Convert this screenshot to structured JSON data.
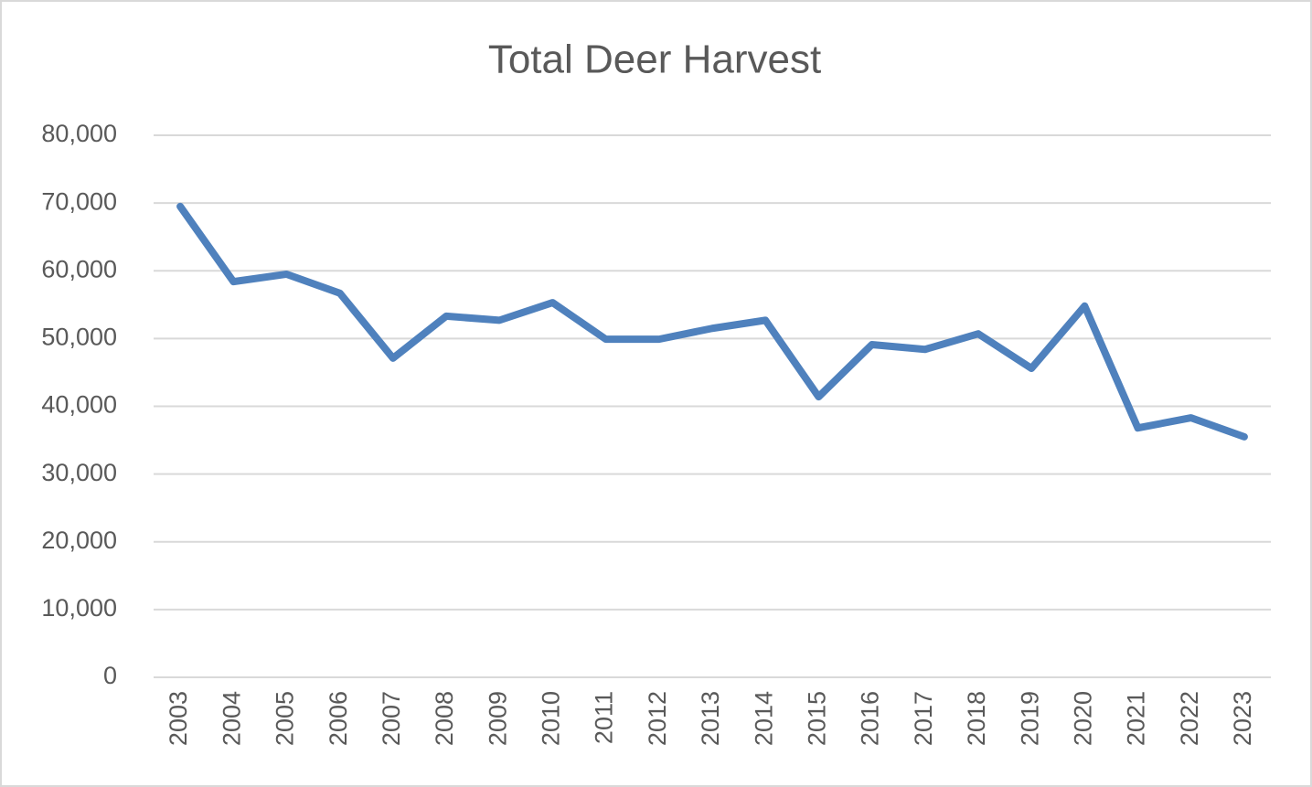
{
  "chart_data": {
    "type": "line",
    "title": "Total Deer Harvest",
    "categories": [
      "2003",
      "2004",
      "2005",
      "2006",
      "2007",
      "2008",
      "2009",
      "2010",
      "2011",
      "2012",
      "2013",
      "2014",
      "2015",
      "2016",
      "2017",
      "2018",
      "2019",
      "2020",
      "2021",
      "2022",
      "2023"
    ],
    "values": [
      69500,
      58400,
      59500,
      56700,
      47100,
      53300,
      52700,
      55300,
      49900,
      49900,
      51500,
      52700,
      41400,
      49100,
      48400,
      50700,
      45600,
      54800,
      36800,
      38300,
      35500
    ],
    "color": "#4f81bd",
    "ylim": [
      0,
      80000
    ],
    "yticks": [
      0,
      {
        "value": 10000,
        "label": "10,000"
      },
      {
        "value": 20000,
        "label": "20,000"
      },
      {
        "value": 30000,
        "label": "30,000"
      },
      {
        "value": 40000,
        "label": "40,000"
      },
      {
        "value": 50000,
        "label": "50,000"
      },
      {
        "value": 60000,
        "label": "60,000"
      },
      {
        "value": 70000,
        "label": "70,000"
      },
      {
        "value": 80000,
        "label": "80,000"
      }
    ],
    "grid": true
  }
}
